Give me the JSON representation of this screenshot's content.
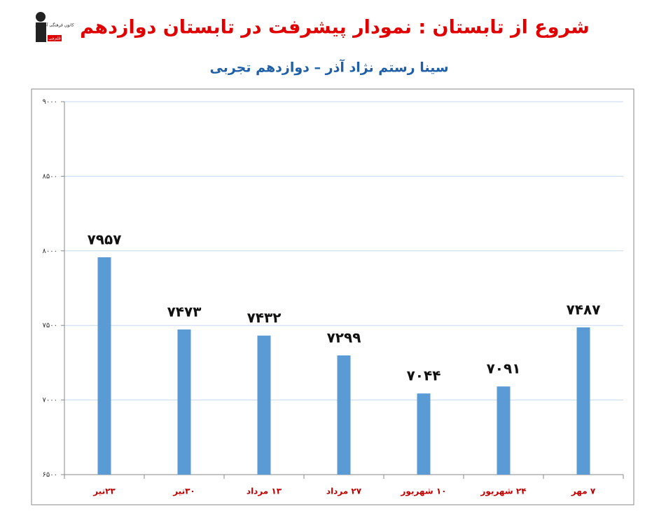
{
  "chart_data": {
    "type": "bar",
    "title": "شروع از تابستان : نمودار پیشرفت در تابستان دوازدهم",
    "subtitle": "سینا رستم نژاد آذر – دوازدهم تجربی",
    "logo_text": "کانون فرهنگی آموزش",
    "logo_badge": "قلم‌چی",
    "categories": [
      "۲۳تیر",
      "۳۰تیر",
      "۱۳ مرداد",
      "۲۷ مرداد",
      "۱۰ شهریور",
      "۲۴ شهریور",
      "۷ مهر"
    ],
    "values": [
      7957,
      7473,
      7432,
      7299,
      7044,
      7091,
      7487
    ],
    "value_labels": [
      "۷۹۵۷",
      "۷۴۷۳",
      "۷۴۳۲",
      "۷۲۹۹",
      "۷۰۴۴",
      "۷۰۹۱",
      "۷۴۸۷"
    ],
    "color": "#5b9bd5",
    "ylim": [
      6500,
      9000
    ],
    "yticks": [
      {
        "value": 6500,
        "label": "۶۵۰۰"
      },
      {
        "value": 7000,
        "label": "۷۰۰۰"
      },
      {
        "value": 7500,
        "label": "۷۵۰۰"
      },
      {
        "value": 8000,
        "label": "۸۰۰۰"
      },
      {
        "value": 8500,
        "label": "۸۵۰۰"
      },
      {
        "value": 9000,
        "label": "۹۰۰۰"
      }
    ],
    "grid": true
  }
}
